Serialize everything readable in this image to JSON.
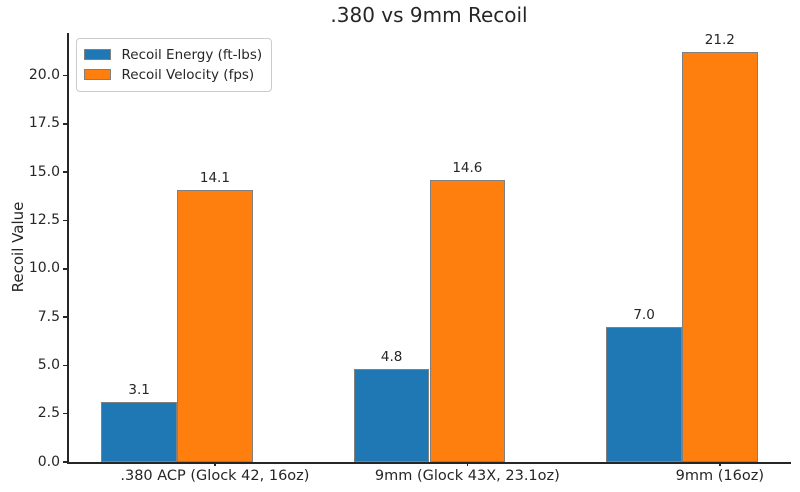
{
  "figure": {
    "background": "#ffffff",
    "text_color": "#262626",
    "axis_color": "#262626",
    "bar_edge_color": "#808080",
    "legend_border_color": "#cccccc"
  },
  "chart_data": {
    "type": "bar",
    "title": ".380 vs 9mm Recoil",
    "xlabel": "",
    "ylabel": "Recoil Value",
    "categories": [
      ".380 ACP (Glock 42, 16oz)",
      "9mm (Glock 43X, 23.1oz)",
      "9mm (16oz)"
    ],
    "series": [
      {
        "name": "Recoil Energy (ft-lbs)",
        "color": "#1f77b4",
        "values": [
          3.1,
          4.8,
          7.0
        ],
        "labels": [
          "3.1",
          "4.8",
          "7.0"
        ]
      },
      {
        "name": "Recoil Velocity (fps)",
        "color": "#ff7f0e",
        "values": [
          14.1,
          14.6,
          21.2
        ],
        "labels": [
          "14.1",
          "14.6",
          "21.2"
        ]
      }
    ],
    "ylim": [
      0,
      22.2
    ],
    "yticks": [
      "0.0",
      "2.5",
      "5.0",
      "7.5",
      "10.0",
      "12.5",
      "15.0",
      "17.5",
      "20.0"
    ],
    "grid": false,
    "legend_position": "upper left",
    "bar_labels": true
  }
}
